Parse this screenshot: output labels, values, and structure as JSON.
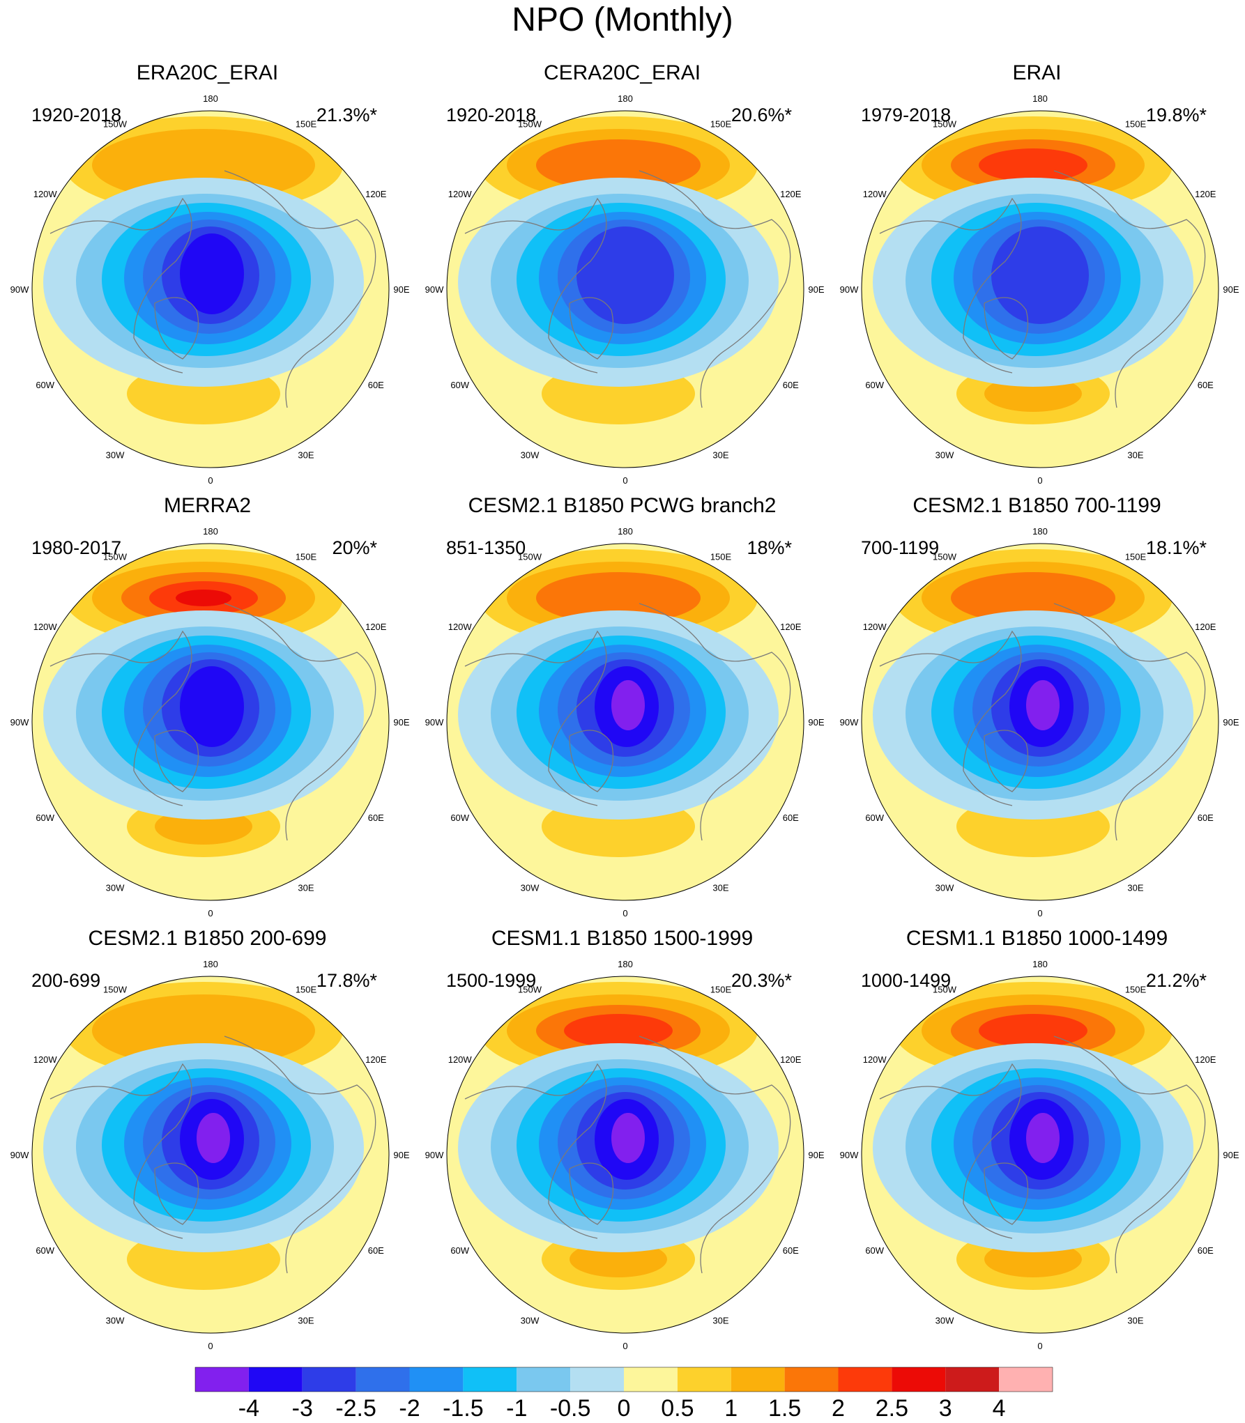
{
  "title": "NPO (Monthly)",
  "longitude_labels": [
    "180",
    "150E",
    "120E",
    "90E",
    "60E",
    "30E",
    "0",
    "30W",
    "60W",
    "90W",
    "120W",
    "150W"
  ],
  "panels": [
    {
      "title": "ERA20C_ERAI",
      "period": "1920-2018",
      "percent": "21.3%*"
    },
    {
      "title": "CERA20C_ERAI",
      "period": "1920-2018",
      "percent": "20.6%*"
    },
    {
      "title": "ERAI",
      "period": "1979-2018",
      "percent": "19.8%*"
    },
    {
      "title": "MERRA2",
      "period": "1980-2017",
      "percent": "20%*"
    },
    {
      "title": "CESM2.1 B1850 PCWG branch2",
      "period": "851-1350",
      "percent": "18%*"
    },
    {
      "title": "CESM2.1 B1850 700-1199",
      "period": "700-1199",
      "percent": "18.1%*"
    },
    {
      "title": "CESM2.1 B1850 200-699",
      "period": "200-699",
      "percent": "17.8%*"
    },
    {
      "title": "CESM1.1 B1850 1500-1999",
      "period": "1500-1999",
      "percent": "20.3%*"
    },
    {
      "title": "CESM1.1 B1850 1000-1499",
      "period": "1000-1499",
      "percent": "21.2%*"
    }
  ],
  "colorbar": {
    "colors": [
      "#8220ee",
      "#2007f5",
      "#2e3de8",
      "#2f70eb",
      "#2090f5",
      "#10c0f7",
      "#7ac8ef",
      "#b4dff2",
      "#fdf69b",
      "#fdd12c",
      "#fbb00c",
      "#fb7608",
      "#fd3a0a",
      "#ec0b06",
      "#cd1b1b",
      "#ffb1b1"
    ],
    "labels": [
      "-4",
      "-3",
      "-2.5",
      "-2",
      "-1.5",
      "-1",
      "-0.5",
      "0",
      "0.5",
      "1",
      "1.5",
      "2",
      "2.5",
      "3",
      "4"
    ]
  }
}
